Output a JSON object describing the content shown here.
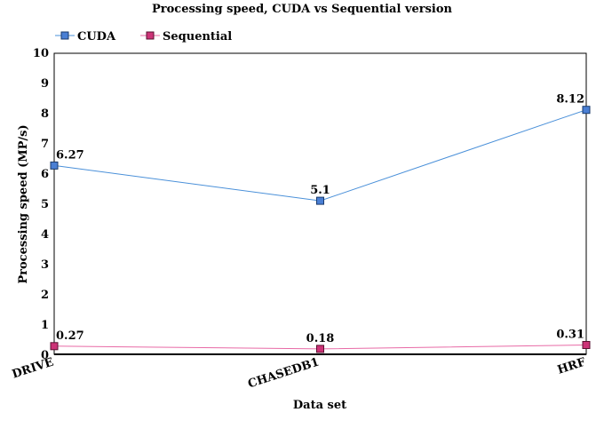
{
  "chart_data": {
    "type": "line",
    "title": "Processing speed, CUDA vs Sequential version",
    "xlabel": "Data set",
    "ylabel": "Processing speed (MP/s)",
    "categories": [
      "DRIVE",
      "CHASEDB1",
      "HRF"
    ],
    "ylim": [
      0,
      10
    ],
    "yticks": [
      "0",
      "1",
      "2",
      "3",
      "4",
      "5",
      "6",
      "7",
      "8",
      "9",
      "10"
    ],
    "grid": false,
    "legend_position": "top-left",
    "series": [
      {
        "name": "CUDA",
        "values": [
          6.27,
          5.1,
          8.12
        ],
        "labels": [
          "6.27",
          "5.1",
          "8.12"
        ],
        "line_color": "#4a90d9",
        "marker_color": "#4a7fd4"
      },
      {
        "name": "Sequential",
        "values": [
          0.27,
          0.18,
          0.31
        ],
        "labels": [
          "0.27",
          "0.18",
          "0.31"
        ],
        "line_color": "#e86aa6",
        "marker_color": "#cc3377"
      }
    ]
  }
}
